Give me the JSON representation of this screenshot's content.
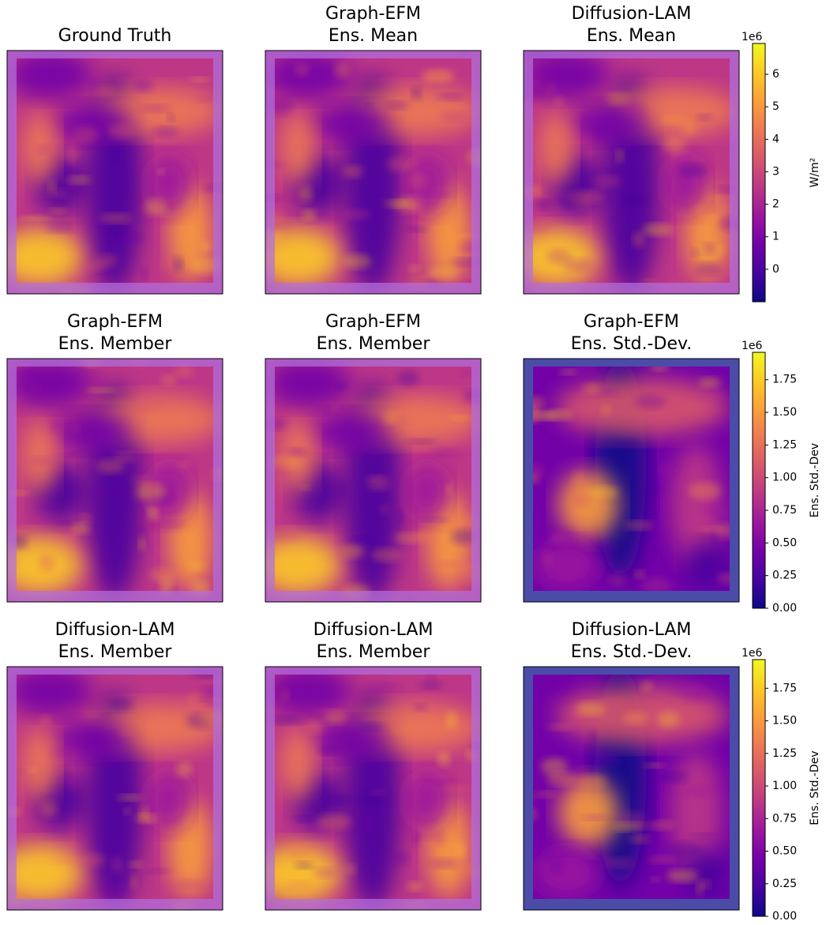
{
  "chart_data": {
    "type": "heatmap-grid",
    "panels": [
      {
        "title": [
          "Ground Truth"
        ]
      },
      {
        "title": [
          "Graph-EFM",
          "Ens. Mean"
        ]
      },
      {
        "title": [
          "Diffusion-LAM",
          "Ens. Mean"
        ]
      },
      {
        "title": [
          "Graph-EFM",
          "Ens. Member"
        ]
      },
      {
        "title": [
          "Graph-EFM",
          "Ens. Member"
        ]
      },
      {
        "title": [
          "Graph-EFM",
          "Ens. Std.-Dev."
        ]
      },
      {
        "title": [
          "Diffusion-LAM",
          "Ens. Member"
        ]
      },
      {
        "title": [
          "Diffusion-LAM",
          "Ens. Member"
        ]
      },
      {
        "title": [
          "Diffusion-LAM",
          "Ens. Std.-Dev."
        ]
      }
    ],
    "colorbars": [
      {
        "colormap": "plasma",
        "offset_label": "1e6",
        "label": "W/m²",
        "ylim": [
          -1.0,
          6.95
        ],
        "yticks": [
          0,
          1,
          2,
          3,
          4,
          5,
          6
        ]
      },
      {
        "colormap": "plasma",
        "offset_label": "1e6",
        "label": "Ens. Std.-Dev",
        "ylim": [
          0,
          1.96
        ],
        "yticks": [
          {
            "value": 0,
            "label": "0.00"
          },
          {
            "value": 0.25,
            "label": "0.25"
          },
          {
            "value": 0.5,
            "label": "0.50"
          },
          {
            "value": 0.75,
            "label": "0.75"
          },
          {
            "value": 1,
            "label": "1.00"
          },
          {
            "value": 1.25,
            "label": "1.25"
          },
          {
            "value": 1.5,
            "label": "1.50"
          },
          {
            "value": 1.75,
            "label": "1.75"
          }
        ]
      },
      {
        "colormap": "plasma",
        "offset_label": "1e6",
        "label": "Ens. Std.-Dev",
        "ylim": [
          0,
          1.97
        ],
        "yticks": [
          {
            "value": 0,
            "label": "0.00"
          },
          {
            "value": 0.25,
            "label": "0.25"
          },
          {
            "value": 0.5,
            "label": "0.50"
          },
          {
            "value": 0.75,
            "label": "0.75"
          },
          {
            "value": 1,
            "label": "1.00"
          },
          {
            "value": 1.25,
            "label": "1.25"
          },
          {
            "value": 1.5,
            "label": "1.50"
          },
          {
            "value": 1.75,
            "label": "1.75"
          }
        ]
      }
    ]
  }
}
